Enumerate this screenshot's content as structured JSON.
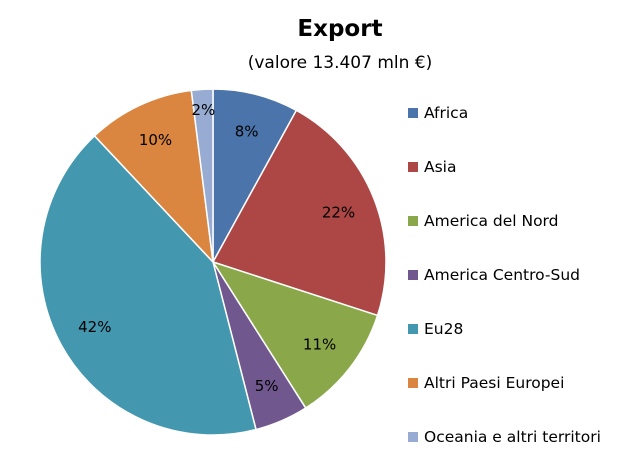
{
  "chart_data": {
    "type": "pie",
    "title": "Export",
    "subtitle": "(valore 13.407 mln €)",
    "categories": [
      "Africa",
      "Asia",
      "America del Nord",
      "America Centro-Sud",
      "Eu28",
      "Altri Paesi Europei",
      "Oceania e altri territori"
    ],
    "values": [
      8,
      22,
      11,
      5,
      42,
      10,
      2
    ],
    "labels": [
      "8%",
      "22%",
      "11%",
      "5%",
      "42%",
      "10%",
      "2%"
    ],
    "colors": [
      "#4a74aa",
      "#ac4745",
      "#8aa84a",
      "#70588f",
      "#4397ae",
      "#da8640",
      "#98acd3"
    ],
    "legend": "right",
    "start": "top",
    "direction": "clockwise"
  }
}
